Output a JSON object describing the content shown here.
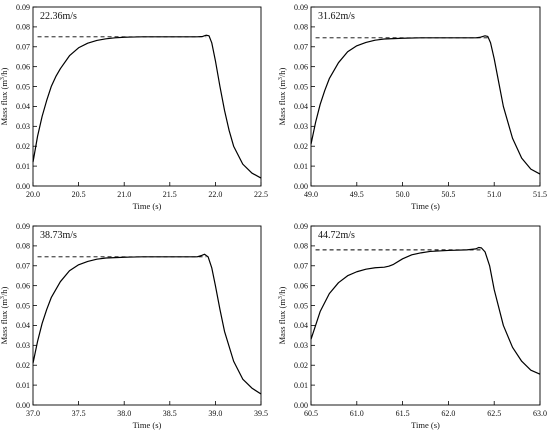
{
  "chart_data": [
    {
      "type": "line",
      "annotation": "22.36m/s",
      "xlabel": "Time (s)",
      "ylabel_prefix": "Mass flux (m",
      "ylabel_sup": "3",
      "ylabel_suffix": "/h)",
      "xlim": [
        20.0,
        22.5
      ],
      "ylim": [
        0.0,
        0.09
      ],
      "xticks": [
        20.0,
        20.5,
        21.0,
        21.5,
        22.0,
        22.5
      ],
      "xtick_labels": [
        "20.0",
        "20.5",
        "21.0",
        "21.5",
        "22.0",
        "22.5"
      ],
      "yticks": [
        0.0,
        0.01,
        0.02,
        0.03,
        0.04,
        0.05,
        0.06,
        0.07,
        0.08,
        0.09
      ],
      "ytick_labels": [
        "0.00",
        "0.01",
        "0.02",
        "0.03",
        "0.04",
        "0.05",
        "0.06",
        "0.07",
        "0.08",
        "0.09"
      ],
      "reference_value": 0.075,
      "reference_x": [
        20.05,
        21.9
      ],
      "x": [
        20.0,
        20.05,
        20.1,
        20.15,
        20.2,
        20.25,
        20.3,
        20.4,
        20.5,
        20.6,
        20.7,
        20.8,
        20.9,
        21.0,
        21.2,
        21.4,
        21.6,
        21.8,
        21.86,
        21.9,
        21.93,
        21.96,
        22.0,
        22.05,
        22.1,
        22.15,
        22.2,
        22.3,
        22.4,
        22.5
      ],
      "y": [
        0.012,
        0.025,
        0.035,
        0.043,
        0.05,
        0.055,
        0.059,
        0.0655,
        0.0695,
        0.0718,
        0.0732,
        0.074,
        0.0745,
        0.0748,
        0.075,
        0.075,
        0.075,
        0.075,
        0.0752,
        0.0758,
        0.0755,
        0.072,
        0.063,
        0.05,
        0.038,
        0.028,
        0.02,
        0.011,
        0.0065,
        0.004
      ]
    },
    {
      "type": "line",
      "annotation": "31.62m/s",
      "xlabel": "Time (s)",
      "ylabel_prefix": "Mass flux (m",
      "ylabel_sup": "3",
      "ylabel_suffix": "/h)",
      "xlim": [
        49.0,
        51.5
      ],
      "ylim": [
        0.0,
        0.09
      ],
      "xticks": [
        49.0,
        49.5,
        50.0,
        50.5,
        51.0,
        51.5
      ],
      "xtick_labels": [
        "49.0",
        "49.5",
        "50.0",
        "50.5",
        "51.0",
        "51.5"
      ],
      "yticks": [
        0.0,
        0.01,
        0.02,
        0.03,
        0.04,
        0.05,
        0.06,
        0.07,
        0.08,
        0.09
      ],
      "ytick_labels": [
        "0.00",
        "0.01",
        "0.02",
        "0.03",
        "0.04",
        "0.05",
        "0.06",
        "0.07",
        "0.08",
        "0.09"
      ],
      "reference_value": 0.0745,
      "reference_x": [
        49.05,
        50.95
      ],
      "x": [
        49.0,
        49.05,
        49.1,
        49.15,
        49.2,
        49.3,
        49.4,
        49.5,
        49.6,
        49.7,
        49.8,
        50.0,
        50.2,
        50.4,
        50.6,
        50.8,
        50.85,
        50.9,
        50.93,
        50.96,
        51.0,
        51.05,
        51.1,
        51.2,
        51.3,
        51.4,
        51.5
      ],
      "y": [
        0.021,
        0.032,
        0.041,
        0.048,
        0.054,
        0.062,
        0.0675,
        0.0705,
        0.0722,
        0.0733,
        0.0739,
        0.0743,
        0.0745,
        0.0745,
        0.0745,
        0.0745,
        0.0748,
        0.0755,
        0.0752,
        0.072,
        0.064,
        0.052,
        0.04,
        0.024,
        0.014,
        0.0085,
        0.006
      ]
    },
    {
      "type": "line",
      "annotation": "38.73m/s",
      "xlabel": "Time (s)",
      "ylabel_prefix": "Mass flux (m",
      "ylabel_sup": "3",
      "ylabel_suffix": "/h)",
      "xlim": [
        37.0,
        39.5
      ],
      "ylim": [
        0.0,
        0.09
      ],
      "xticks": [
        37.0,
        37.5,
        38.0,
        38.5,
        39.0,
        39.5
      ],
      "xtick_labels": [
        "37.0",
        "37.5",
        "38.0",
        "38.5",
        "39.0",
        "39.5"
      ],
      "yticks": [
        0.0,
        0.01,
        0.02,
        0.03,
        0.04,
        0.05,
        0.06,
        0.07,
        0.08,
        0.09
      ],
      "ytick_labels": [
        "0.00",
        "0.01",
        "0.02",
        "0.03",
        "0.04",
        "0.05",
        "0.06",
        "0.07",
        "0.08",
        "0.09"
      ],
      "reference_value": 0.0745,
      "reference_x": [
        37.05,
        38.9
      ],
      "x": [
        37.0,
        37.05,
        37.1,
        37.15,
        37.2,
        37.3,
        37.4,
        37.5,
        37.6,
        37.7,
        37.8,
        38.0,
        38.2,
        38.4,
        38.6,
        38.8,
        38.85,
        38.88,
        38.92,
        38.96,
        39.0,
        39.05,
        39.1,
        39.2,
        39.3,
        39.4,
        39.5
      ],
      "y": [
        0.021,
        0.032,
        0.041,
        0.048,
        0.054,
        0.062,
        0.0675,
        0.0705,
        0.0722,
        0.0733,
        0.0739,
        0.0743,
        0.0745,
        0.0745,
        0.0745,
        0.0745,
        0.0752,
        0.0758,
        0.0745,
        0.069,
        0.06,
        0.048,
        0.037,
        0.022,
        0.013,
        0.0085,
        0.0055
      ]
    },
    {
      "type": "line",
      "annotation": "44.72m/s",
      "xlabel": "Time (s)",
      "ylabel_prefix": "Mass flux (m",
      "ylabel_sup": "3",
      "ylabel_suffix": "/h)",
      "xlim": [
        60.5,
        63.0
      ],
      "ylim": [
        0.0,
        0.09
      ],
      "xticks": [
        60.5,
        61.0,
        61.5,
        62.0,
        62.5,
        63.0
      ],
      "xtick_labels": [
        "60.5",
        "61.0",
        "61.5",
        "62.0",
        "62.5",
        "63.0"
      ],
      "yticks": [
        0.0,
        0.01,
        0.02,
        0.03,
        0.04,
        0.05,
        0.06,
        0.07,
        0.08,
        0.09
      ],
      "ytick_labels": [
        "0.00",
        "0.01",
        "0.02",
        "0.03",
        "0.04",
        "0.05",
        "0.06",
        "0.07",
        "0.08",
        "0.09"
      ],
      "reference_value": 0.078,
      "reference_x": [
        60.55,
        62.35
      ],
      "x": [
        60.5,
        60.55,
        60.6,
        60.7,
        60.8,
        60.9,
        61.0,
        61.1,
        61.2,
        61.3,
        61.35,
        61.4,
        61.5,
        61.6,
        61.7,
        61.8,
        62.0,
        62.2,
        62.3,
        62.33,
        62.36,
        62.4,
        62.45,
        62.5,
        62.6,
        62.7,
        62.8,
        62.9,
        63.0
      ],
      "y": [
        0.033,
        0.04,
        0.047,
        0.056,
        0.0615,
        0.065,
        0.067,
        0.0683,
        0.069,
        0.0693,
        0.0698,
        0.0707,
        0.0735,
        0.0755,
        0.0765,
        0.0772,
        0.0777,
        0.078,
        0.0785,
        0.0792,
        0.079,
        0.077,
        0.07,
        0.058,
        0.04,
        0.029,
        0.022,
        0.0175,
        0.0155
      ]
    }
  ]
}
